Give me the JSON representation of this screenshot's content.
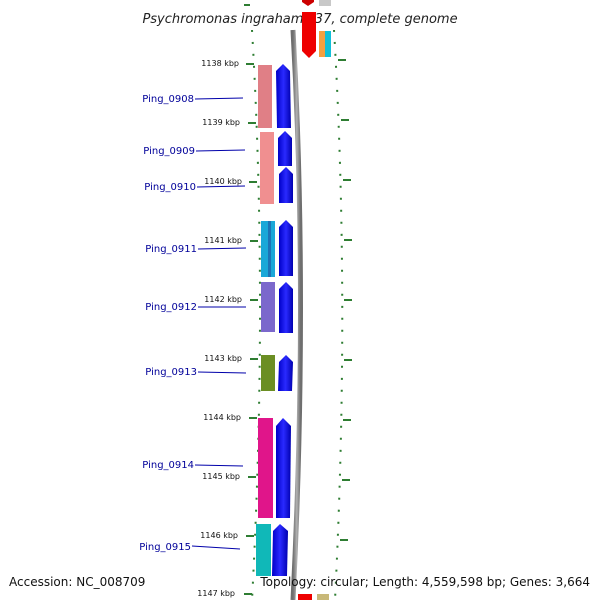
{
  "title": "Psychromonas ingrahamii 37, complete genome",
  "footer": {
    "accession": "Accession: NC_008709",
    "info": "Topology: circular; Length: 4,559,598 bp; Genes: 3,664"
  },
  "ticks": [
    "1138 kbp",
    "1139 kbp",
    "1140 kbp",
    "1141 kbp",
    "1142 kbp",
    "1143 kbp",
    "1144 kbp",
    "1145 kbp",
    "1146 kbp",
    "1147 kbp"
  ],
  "genes": [
    {
      "label": "Ping_0908",
      "color": "#e07f86"
    },
    {
      "label": "Ping_0909",
      "color": "#f08f90"
    },
    {
      "label": "Ping_0910",
      "color": "#f08f90"
    },
    {
      "label": "Ping_0911",
      "color": "#1aa8d8"
    },
    {
      "label": "Ping_0912",
      "color": "#7b68cc"
    },
    {
      "label": "Ping_0913",
      "color": "#6b8e23"
    },
    {
      "label": "Ping_0914",
      "color": "#e0158a"
    },
    {
      "label": "Ping_0915",
      "color": "#10b8b8"
    }
  ],
  "colors": {
    "cds": "#0000ff",
    "backbone": "#888888",
    "tick": "#2e7d32",
    "label_line": "#0000aa"
  }
}
